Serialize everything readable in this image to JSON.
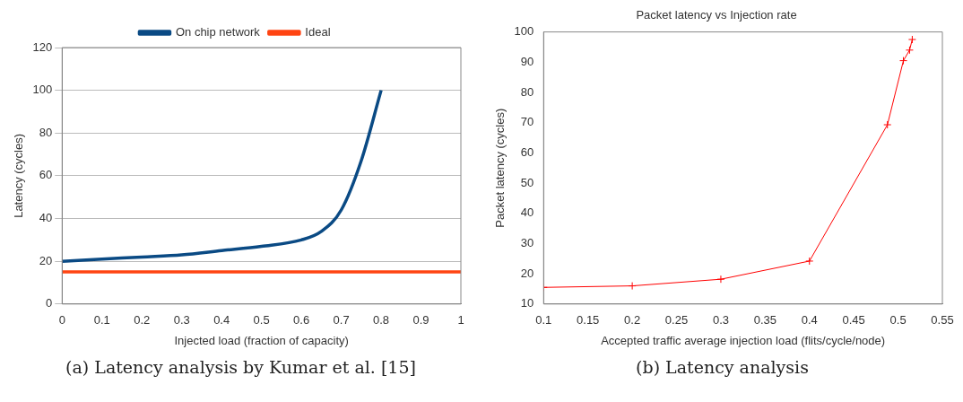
{
  "chart_data": [
    {
      "type": "line",
      "xlabel": "Injected load (fraction of capacity)",
      "ylabel": "Latency (cycles)",
      "series": [
        {
          "name": "On chip network",
          "color": "#0a4a84",
          "x": [
            0,
            0.1,
            0.2,
            0.3,
            0.4,
            0.5,
            0.6,
            0.65,
            0.7,
            0.75,
            0.8
          ],
          "values": [
            20,
            21,
            22,
            23,
            25,
            27,
            30,
            34,
            44,
            67,
            100
          ]
        },
        {
          "name": "Ideal",
          "color": "#ff4412",
          "x": [
            0,
            1
          ],
          "values": [
            15,
            15
          ]
        }
      ],
      "xlim": [
        0,
        1
      ],
      "xticks": [
        0,
        0.1,
        0.2,
        0.3,
        0.4,
        0.5,
        0.6,
        0.7,
        0.8,
        0.9,
        1
      ],
      "ylim": [
        0,
        120
      ],
      "yticks": [
        0,
        20,
        40,
        60,
        80,
        100,
        120
      ],
      "grid": "y",
      "legend": "top",
      "marker": "none",
      "annotations": [
        "(a) Latency analysis by Kumar et al. [15]"
      ]
    },
    {
      "type": "line",
      "title": "Packet latency vs Injection rate",
      "xlabel": "Accepted traffic average injection load (flits/cycle/node)",
      "ylabel": "Packet latency (cycles)",
      "series": [
        {
          "color": "#ff0000",
          "x": [
            0.1,
            0.2,
            0.3,
            0.4,
            0.488,
            0.506,
            0.513,
            0.516
          ],
          "values": [
            15.5,
            16,
            18.2,
            24.2,
            69.3,
            90.5,
            94,
            97.5
          ]
        }
      ],
      "xlim": [
        0.1,
        0.55
      ],
      "xticks": [
        0.1,
        0.15,
        0.2,
        0.25,
        0.3,
        0.35,
        0.4,
        0.45,
        0.5,
        0.55
      ],
      "ylim": [
        10,
        100
      ],
      "yticks": [
        10,
        20,
        30,
        40,
        50,
        60,
        70,
        80,
        90,
        100
      ],
      "grid": false,
      "legend": false,
      "marker": "cross",
      "annotations": [
        "(b) Latency analysis"
      ]
    }
  ]
}
